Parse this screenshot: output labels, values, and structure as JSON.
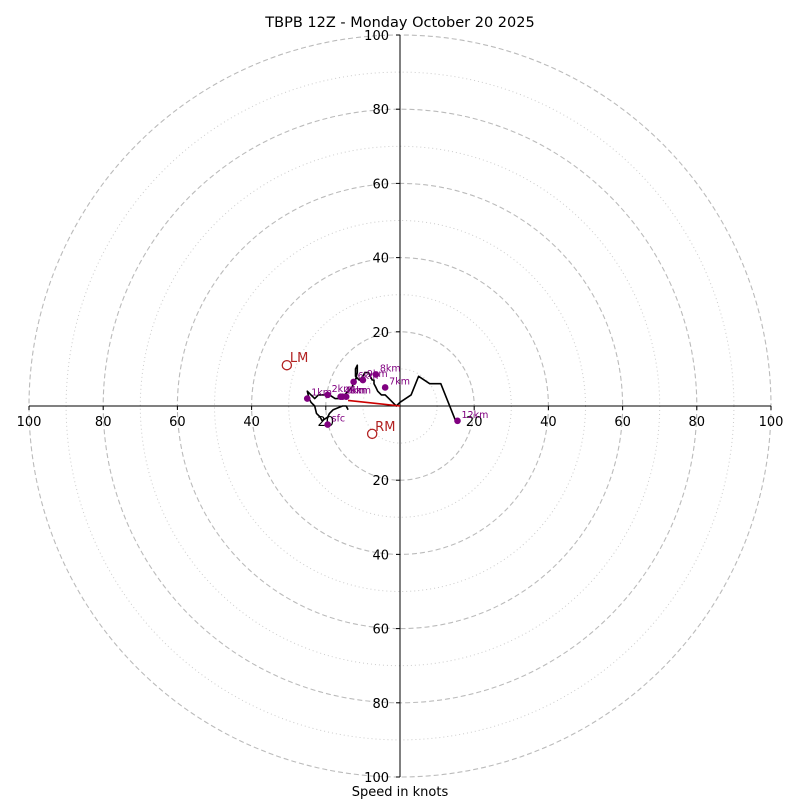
{
  "chart_data": {
    "type": "hodograph",
    "title": "TBPB 12Z - Monday October 20 2025",
    "xlabel": "Speed in knots",
    "range": [
      -100,
      100
    ],
    "rings": [
      20,
      40,
      60,
      80,
      100
    ],
    "minor_rings": [
      10,
      30,
      50,
      70,
      90
    ],
    "x_tick_labels": [
      "100",
      "80",
      "60",
      "40",
      "20",
      "20",
      "40",
      "60",
      "80",
      "100"
    ],
    "x_tick_values": [
      -100,
      -80,
      -60,
      -40,
      -20,
      20,
      40,
      60,
      80,
      100
    ],
    "y_tick_labels": [
      "100",
      "80",
      "60",
      "40",
      "20",
      "20",
      "40",
      "60",
      "80",
      "100"
    ],
    "y_tick_values": [
      100,
      80,
      60,
      40,
      20,
      -20,
      -40,
      -60,
      -80,
      -100
    ],
    "colors": {
      "trace": "#000000",
      "height_points": "#800080",
      "motion": "#b22222",
      "shear": "#cc0000",
      "ring_major": "#bbbbbb",
      "ring_minor": "#cccccc"
    },
    "hodograph_trace": {
      "u": [
        -14,
        -14.5,
        -15.5,
        -18,
        -19,
        -19.5,
        -21,
        -21.5,
        -22.5,
        -23,
        -24,
        -24.5,
        -25,
        -24,
        -23,
        -22,
        -21,
        -20,
        -19,
        -17.5,
        -16,
        -15,
        -14,
        -13,
        -12.5,
        -12,
        -11.5,
        -11.5,
        -12,
        -12,
        -11,
        -10,
        -9.5,
        -8.5,
        -8,
        -7.5,
        -7,
        -7,
        -6.5,
        -6,
        -5,
        -4,
        -3,
        -2,
        -1,
        0,
        3,
        5,
        8,
        11,
        15
      ],
      "v": [
        -1,
        0,
        0,
        -1,
        -2,
        -3,
        -4,
        -3,
        -2,
        0,
        1,
        2,
        4,
        3,
        2,
        3,
        3,
        3,
        3,
        2,
        2,
        3,
        4,
        5,
        6,
        7,
        9,
        11,
        10,
        8,
        7,
        8,
        9,
        9,
        8,
        7,
        7,
        6,
        5,
        4,
        3,
        3,
        2,
        1,
        0,
        1,
        3,
        8,
        6,
        6,
        -4
      ]
    },
    "height_points": [
      {
        "label": "sfc",
        "u": -19.5,
        "v": -5
      },
      {
        "label": "1km",
        "u": -25,
        "v": 2
      },
      {
        "label": "2km",
        "u": -19.5,
        "v": 3
      },
      {
        "label": "3km",
        "u": -15.5,
        "v": 2.5
      },
      {
        "label": "4km",
        "u": -16,
        "v": 2.5
      },
      {
        "label": "5km",
        "u": -14.5,
        "v": 2.5
      },
      {
        "label": "6km",
        "u": -12.5,
        "v": 6.5
      },
      {
        "label": "7km",
        "u": -4,
        "v": 5
      },
      {
        "label": "8km",
        "u": -6.5,
        "v": 8.5
      },
      {
        "label": "9km",
        "u": -10,
        "v": 7
      },
      {
        "label": "12km",
        "u": 15.5,
        "v": -4
      }
    ],
    "storm_motion": [
      {
        "label": "LM",
        "u": -30.5,
        "v": 11
      },
      {
        "label": "RM",
        "u": -7.5,
        "v": -7.5
      }
    ],
    "shear_vector": {
      "from_u": -14,
      "from_v": 1.5,
      "to_u": 0,
      "to_v": 0
    }
  }
}
